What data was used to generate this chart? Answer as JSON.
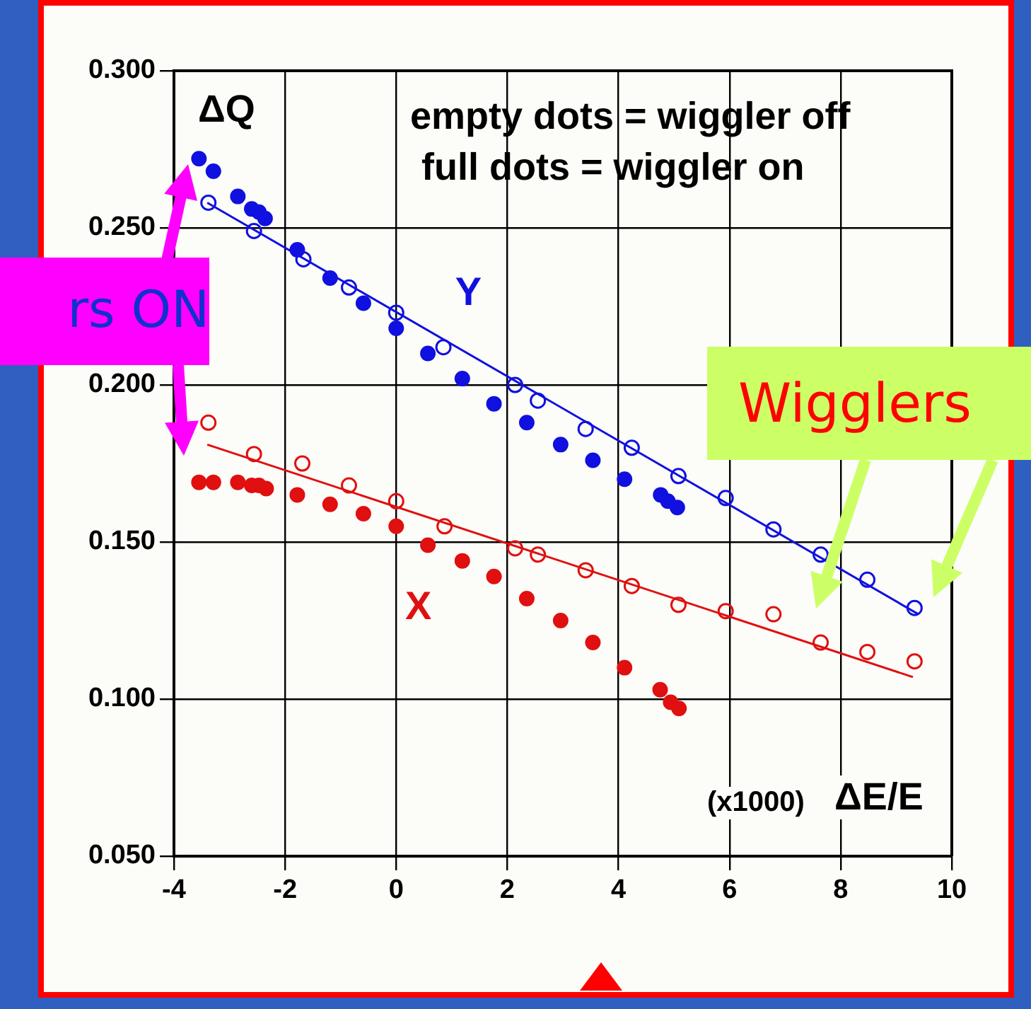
{
  "chart_data": {
    "type": "scatter",
    "ylabel": "ΔQ",
    "xlabel": "ΔE/E",
    "subtitle": "(x1000)",
    "xlim": [
      -4,
      10
    ],
    "xticks": [
      -4,
      -2,
      0,
      2,
      4,
      6,
      8,
      10
    ],
    "ylim": [
      0.05,
      0.3
    ],
    "yticks": [
      {
        "value": 0.05,
        "label": "0.050"
      },
      {
        "value": 0.1,
        "label": "0.100"
      },
      {
        "value": 0.15,
        "label": "0.150"
      },
      {
        "value": 0.2,
        "label": "0.200"
      },
      {
        "value": 0.25,
        "label": "0.250"
      },
      {
        "value": 0.3,
        "label": "0.300"
      }
    ],
    "grid": true,
    "legend": false,
    "series": [
      {
        "color": "#1010e0",
        "marker": "circle",
        "x": [
          -3.55,
          -3.29,
          -2.85,
          -2.6,
          -2.47,
          -2.36,
          -1.78,
          -1.19,
          -0.59,
          0,
          0.57,
          1.19,
          1.76,
          2.35,
          2.96,
          3.54,
          4.11,
          4.76,
          4.89,
          5.06
        ],
        "values": [
          0.272,
          0.268,
          0.26,
          0.256,
          0.255,
          0.253,
          0.243,
          0.234,
          0.226,
          0.218,
          0.21,
          0.202,
          0.194,
          0.188,
          0.181,
          0.176,
          0.17,
          0.165,
          0.163,
          0.161
        ]
      },
      {
        "color": "#1010e0",
        "marker": "circle",
        "x": [
          -3.38,
          -2.56,
          -1.67,
          -0.85,
          0,
          0.85,
          2.14,
          2.55,
          3.41,
          4.24,
          5.08,
          5.93,
          6.79,
          7.64,
          8.48,
          9.33
        ],
        "values": [
          0.258,
          0.249,
          0.24,
          0.231,
          0.223,
          0.212,
          0.2,
          0.195,
          0.186,
          0.18,
          0.171,
          0.164,
          0.154,
          0.146,
          0.138,
          0.129
        ]
      },
      {
        "type": "line",
        "color": "#1010e0",
        "marker": "none",
        "x": [
          -3.4,
          9.4
        ],
        "values": [
          0.258,
          0.127
        ]
      },
      {
        "color": "#e01010",
        "marker": "circle",
        "x": [
          -3.55,
          -3.29,
          -2.85,
          -2.6,
          -2.47,
          -2.34,
          -1.78,
          -1.19,
          -0.59,
          0,
          0.57,
          1.19,
          1.76,
          2.35,
          2.96,
          3.54,
          4.11,
          4.75,
          4.94,
          5.09
        ],
        "values": [
          0.169,
          0.169,
          0.169,
          0.168,
          0.168,
          0.167,
          0.165,
          0.162,
          0.159,
          0.155,
          0.149,
          0.144,
          0.139,
          0.132,
          0.125,
          0.118,
          0.11,
          0.103,
          0.099,
          0.097
        ]
      },
      {
        "color": "#e01010",
        "marker": "circle",
        "x": [
          -3.38,
          -2.56,
          -1.69,
          -0.85,
          0,
          0.87,
          2.14,
          2.55,
          3.41,
          4.24,
          5.08,
          5.93,
          6.79,
          7.64,
          8.48,
          9.33
        ],
        "values": [
          0.188,
          0.178,
          0.175,
          0.168,
          0.163,
          0.155,
          0.148,
          0.146,
          0.141,
          0.136,
          0.13,
          0.128,
          0.127,
          0.118,
          0.115,
          0.112
        ]
      },
      {
        "type": "line",
        "color": "#e01010",
        "marker": "none",
        "x": [
          -3.4,
          9.3
        ],
        "values": [
          0.181,
          0.107
        ]
      }
    ],
    "annotations": [
      "Y",
      "X",
      "empty dots = wiggler off",
      "full dots = wiggler on",
      "rs ON",
      "Wigglers"
    ]
  }
}
